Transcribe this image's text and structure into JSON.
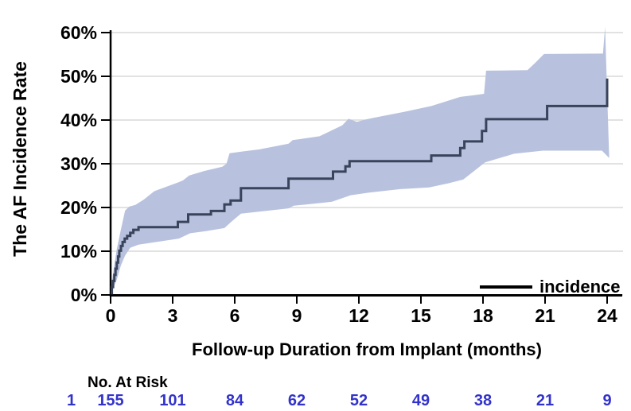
{
  "colors": {
    "curve": "#39435a",
    "band": "#b8c2de",
    "gridline": "#d9d9d9",
    "axis": "#000000",
    "at_risk_text": "#3333cc",
    "background": "#ffffff"
  },
  "legend": {
    "label": "incidence"
  },
  "at_risk": {
    "label": "No. At Risk",
    "values": [
      "1",
      "155",
      "101",
      "84",
      "62",
      "52",
      "49",
      "38",
      "21",
      "9"
    ],
    "months": [
      -1.9,
      0,
      3,
      6,
      9,
      12,
      15,
      18,
      21,
      24
    ],
    "color": "#3333cc"
  },
  "chart_data": {
    "type": "line",
    "subtype": "kaplan-meier-cumulative-incidence-step",
    "title": "",
    "xlabel": "Follow-up Duration from Implant (months)",
    "ylabel": "The AF Incidence Rate",
    "xticks": [
      0,
      3,
      6,
      9,
      12,
      15,
      18,
      21,
      24
    ],
    "ytick_values": [
      0,
      10,
      20,
      30,
      40,
      50,
      60
    ],
    "ytick_labels": [
      "0%",
      "10%",
      "20%",
      "30%",
      "40%",
      "50%",
      "60%"
    ],
    "xlim": [
      0,
      24.8
    ],
    "ylim": [
      0,
      62
    ],
    "grid": true,
    "legend_position": "bottom-right-inside",
    "series": [
      {
        "name": "incidence",
        "step": true,
        "points": [
          [
            0,
            0.4
          ],
          [
            0.06,
            1.8
          ],
          [
            0.12,
            3.2
          ],
          [
            0.18,
            4.6
          ],
          [
            0.24,
            6.0
          ],
          [
            0.3,
            7.4
          ],
          [
            0.36,
            8.8
          ],
          [
            0.42,
            10.1
          ],
          [
            0.5,
            11.2
          ],
          [
            0.58,
            12.1
          ],
          [
            0.68,
            12.9
          ],
          [
            0.8,
            13.5
          ],
          [
            0.95,
            14.2
          ],
          [
            1.1,
            14.9
          ],
          [
            1.35,
            15.5
          ],
          [
            3.25,
            16.7
          ],
          [
            3.75,
            18.4
          ],
          [
            4.85,
            19.2
          ],
          [
            5.5,
            20.7
          ],
          [
            5.8,
            21.6
          ],
          [
            6.3,
            24.4
          ],
          [
            8.6,
            26.6
          ],
          [
            10.75,
            28.2
          ],
          [
            11.35,
            29.4
          ],
          [
            11.55,
            30.6
          ],
          [
            15.5,
            31.9
          ],
          [
            16.9,
            33.6
          ],
          [
            17.1,
            35.1
          ],
          [
            17.95,
            37.5
          ],
          [
            18.15,
            40.2
          ],
          [
            21.1,
            43.2
          ],
          [
            24,
            43.2
          ],
          [
            24,
            49.5
          ]
        ]
      }
    ],
    "band": {
      "name": "confidence-interval",
      "upper": [
        [
          0,
          0.8
        ],
        [
          0.15,
          6
        ],
        [
          0.3,
          10.5
        ],
        [
          0.5,
          15
        ],
        [
          0.7,
          19.3
        ],
        [
          0.9,
          20.2
        ],
        [
          1.2,
          20.6
        ],
        [
          1.6,
          21.8
        ],
        [
          2.1,
          23.7
        ],
        [
          2.2,
          23.9
        ],
        [
          3.3,
          25.8
        ],
        [
          3.5,
          26.2
        ],
        [
          3.8,
          27.3
        ],
        [
          4.5,
          28.3
        ],
        [
          5.4,
          29.3
        ],
        [
          5.6,
          30
        ],
        [
          5.75,
          32.4
        ],
        [
          6.5,
          32.9
        ],
        [
          7.2,
          33.3
        ],
        [
          8.6,
          34.6
        ],
        [
          8.8,
          35.4
        ],
        [
          10.1,
          36.3
        ],
        [
          11.2,
          38.8
        ],
        [
          11.5,
          40.3
        ],
        [
          11.9,
          39.6
        ],
        [
          12.4,
          40.2
        ],
        [
          12.8,
          40.6
        ],
        [
          14.2,
          41.9
        ],
        [
          15.5,
          43.2
        ],
        [
          16.9,
          45.3
        ],
        [
          17.6,
          45.7
        ],
        [
          18.05,
          46
        ],
        [
          18.15,
          51.3
        ],
        [
          20.15,
          51.4
        ],
        [
          20.55,
          53.2
        ],
        [
          20.95,
          55.1
        ],
        [
          23.8,
          55.2
        ],
        [
          23.9,
          61.3
        ]
      ],
      "lower": [
        [
          0,
          0.1
        ],
        [
          0.3,
          3.5
        ],
        [
          0.5,
          6.8
        ],
        [
          0.7,
          9
        ],
        [
          0.95,
          10.8
        ],
        [
          1.35,
          11.5
        ],
        [
          3.3,
          12.9
        ],
        [
          3.85,
          14.1
        ],
        [
          4.6,
          14.6
        ],
        [
          5.5,
          15.3
        ],
        [
          5.85,
          16.8
        ],
        [
          6.3,
          18.6
        ],
        [
          8.6,
          19.8
        ],
        [
          8.85,
          20.4
        ],
        [
          10.7,
          21.3
        ],
        [
          11.6,
          22.8
        ],
        [
          12.5,
          23.4
        ],
        [
          14,
          24.2
        ],
        [
          15.4,
          24.6
        ],
        [
          16.3,
          25.5
        ],
        [
          17.05,
          26.4
        ],
        [
          18.1,
          30.3
        ],
        [
          19.5,
          32.3
        ],
        [
          20.9,
          33
        ],
        [
          23.75,
          33
        ],
        [
          24.1,
          31.3
        ]
      ]
    }
  }
}
